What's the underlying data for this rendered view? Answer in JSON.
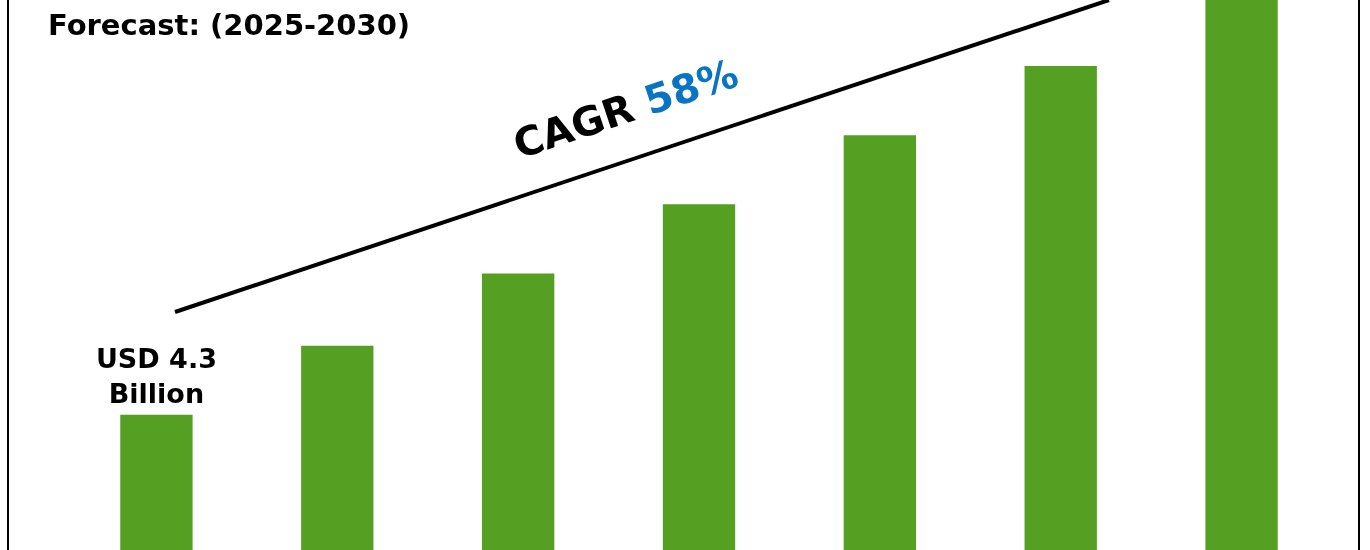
{
  "chart_data": {
    "type": "bar",
    "title": "Forecast: (2025-2030)",
    "categories": [
      null,
      null,
      null,
      null,
      null,
      null,
      null
    ],
    "values": [
      4.3,
      6.5,
      8.8,
      11.0,
      13.2,
      15.4,
      17.5
    ],
    "ylim": [
      0,
      17.5
    ],
    "tick_labels": false,
    "value_labels": [
      "USD 4.3 Billion",
      null,
      null,
      null,
      null,
      null,
      null
    ],
    "color": "#55a023",
    "annotations": [
      "CAGR 58%"
    ]
  }
}
